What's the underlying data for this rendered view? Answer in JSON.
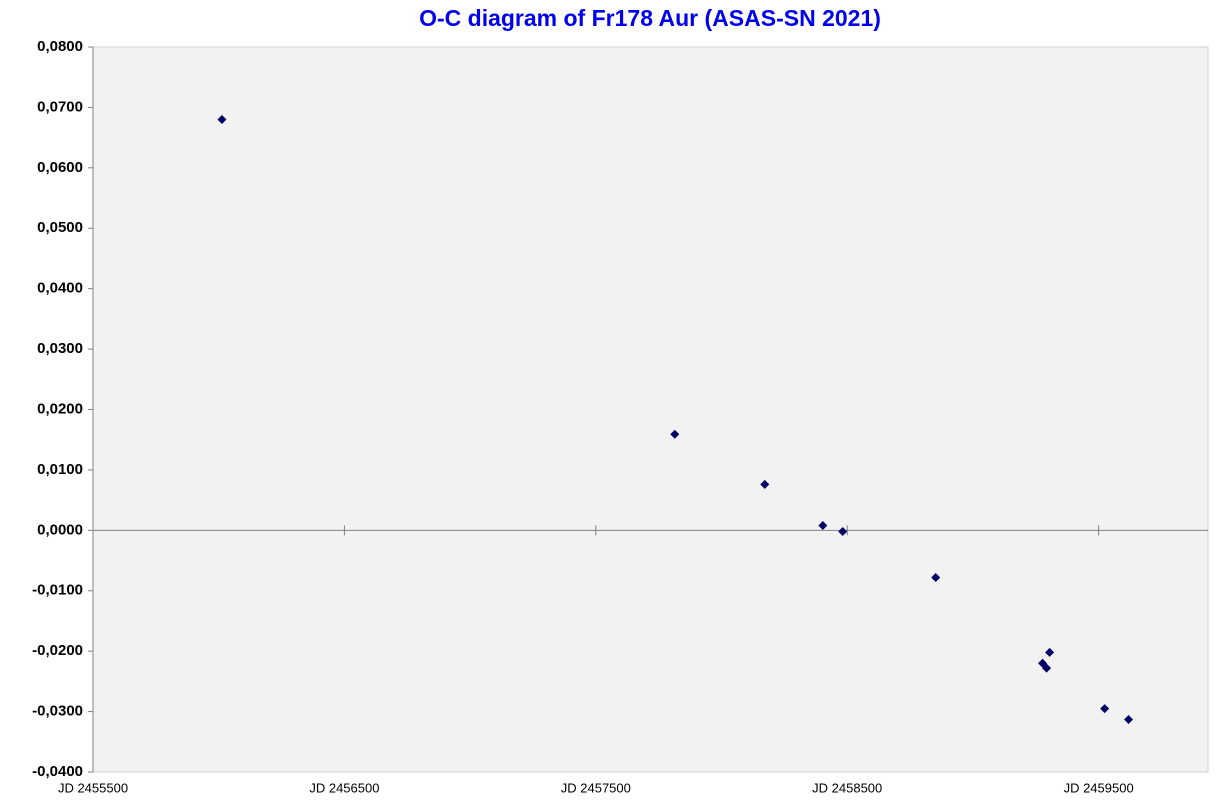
{
  "chart_data": {
    "type": "scatter",
    "title": "O-C diagram of Fr178 Aur (ASAS-SN 2021)",
    "x": [
      2456013,
      2457814,
      2458172,
      2458403,
      2458482,
      2458852,
      2459277,
      2459293,
      2459305,
      2459524,
      2459619
    ],
    "values": [
      0.068,
      0.0159,
      0.0076,
      0.0008,
      -0.0002,
      -0.0078,
      -0.022,
      -0.0228,
      -0.0202,
      -0.0295,
      -0.0313
    ],
    "color": "#000066",
    "xlim": [
      2455500,
      2459935
    ],
    "xticks": [
      {
        "value": 2455500,
        "label": "JD 2455500"
      },
      {
        "value": 2456500,
        "label": "JD 2456500"
      },
      {
        "value": 2457500,
        "label": "JD 2457500"
      },
      {
        "value": 2458500,
        "label": "JD 2458500"
      },
      {
        "value": 2459500,
        "label": "JD 2459500"
      }
    ],
    "ylim": [
      -0.04,
      0.08
    ],
    "yticks": [
      {
        "value": 0.08,
        "label": "0,0800"
      },
      {
        "value": 0.07,
        "label": "0,0700"
      },
      {
        "value": 0.06,
        "label": "0,0600"
      },
      {
        "value": 0.05,
        "label": "0,0500"
      },
      {
        "value": 0.04,
        "label": "0,0400"
      },
      {
        "value": 0.03,
        "label": "0,0300"
      },
      {
        "value": 0.02,
        "label": "0,0200"
      },
      {
        "value": 0.01,
        "label": "0,0100"
      },
      {
        "value": 0,
        "label": "0,0000"
      },
      {
        "value": -0.01,
        "label": "-0,0100"
      },
      {
        "value": -0.02,
        "label": "-0,0200"
      },
      {
        "value": -0.03,
        "label": "-0,0300"
      },
      {
        "value": -0.04,
        "label": "-0,0400"
      }
    ],
    "grid": false
  }
}
